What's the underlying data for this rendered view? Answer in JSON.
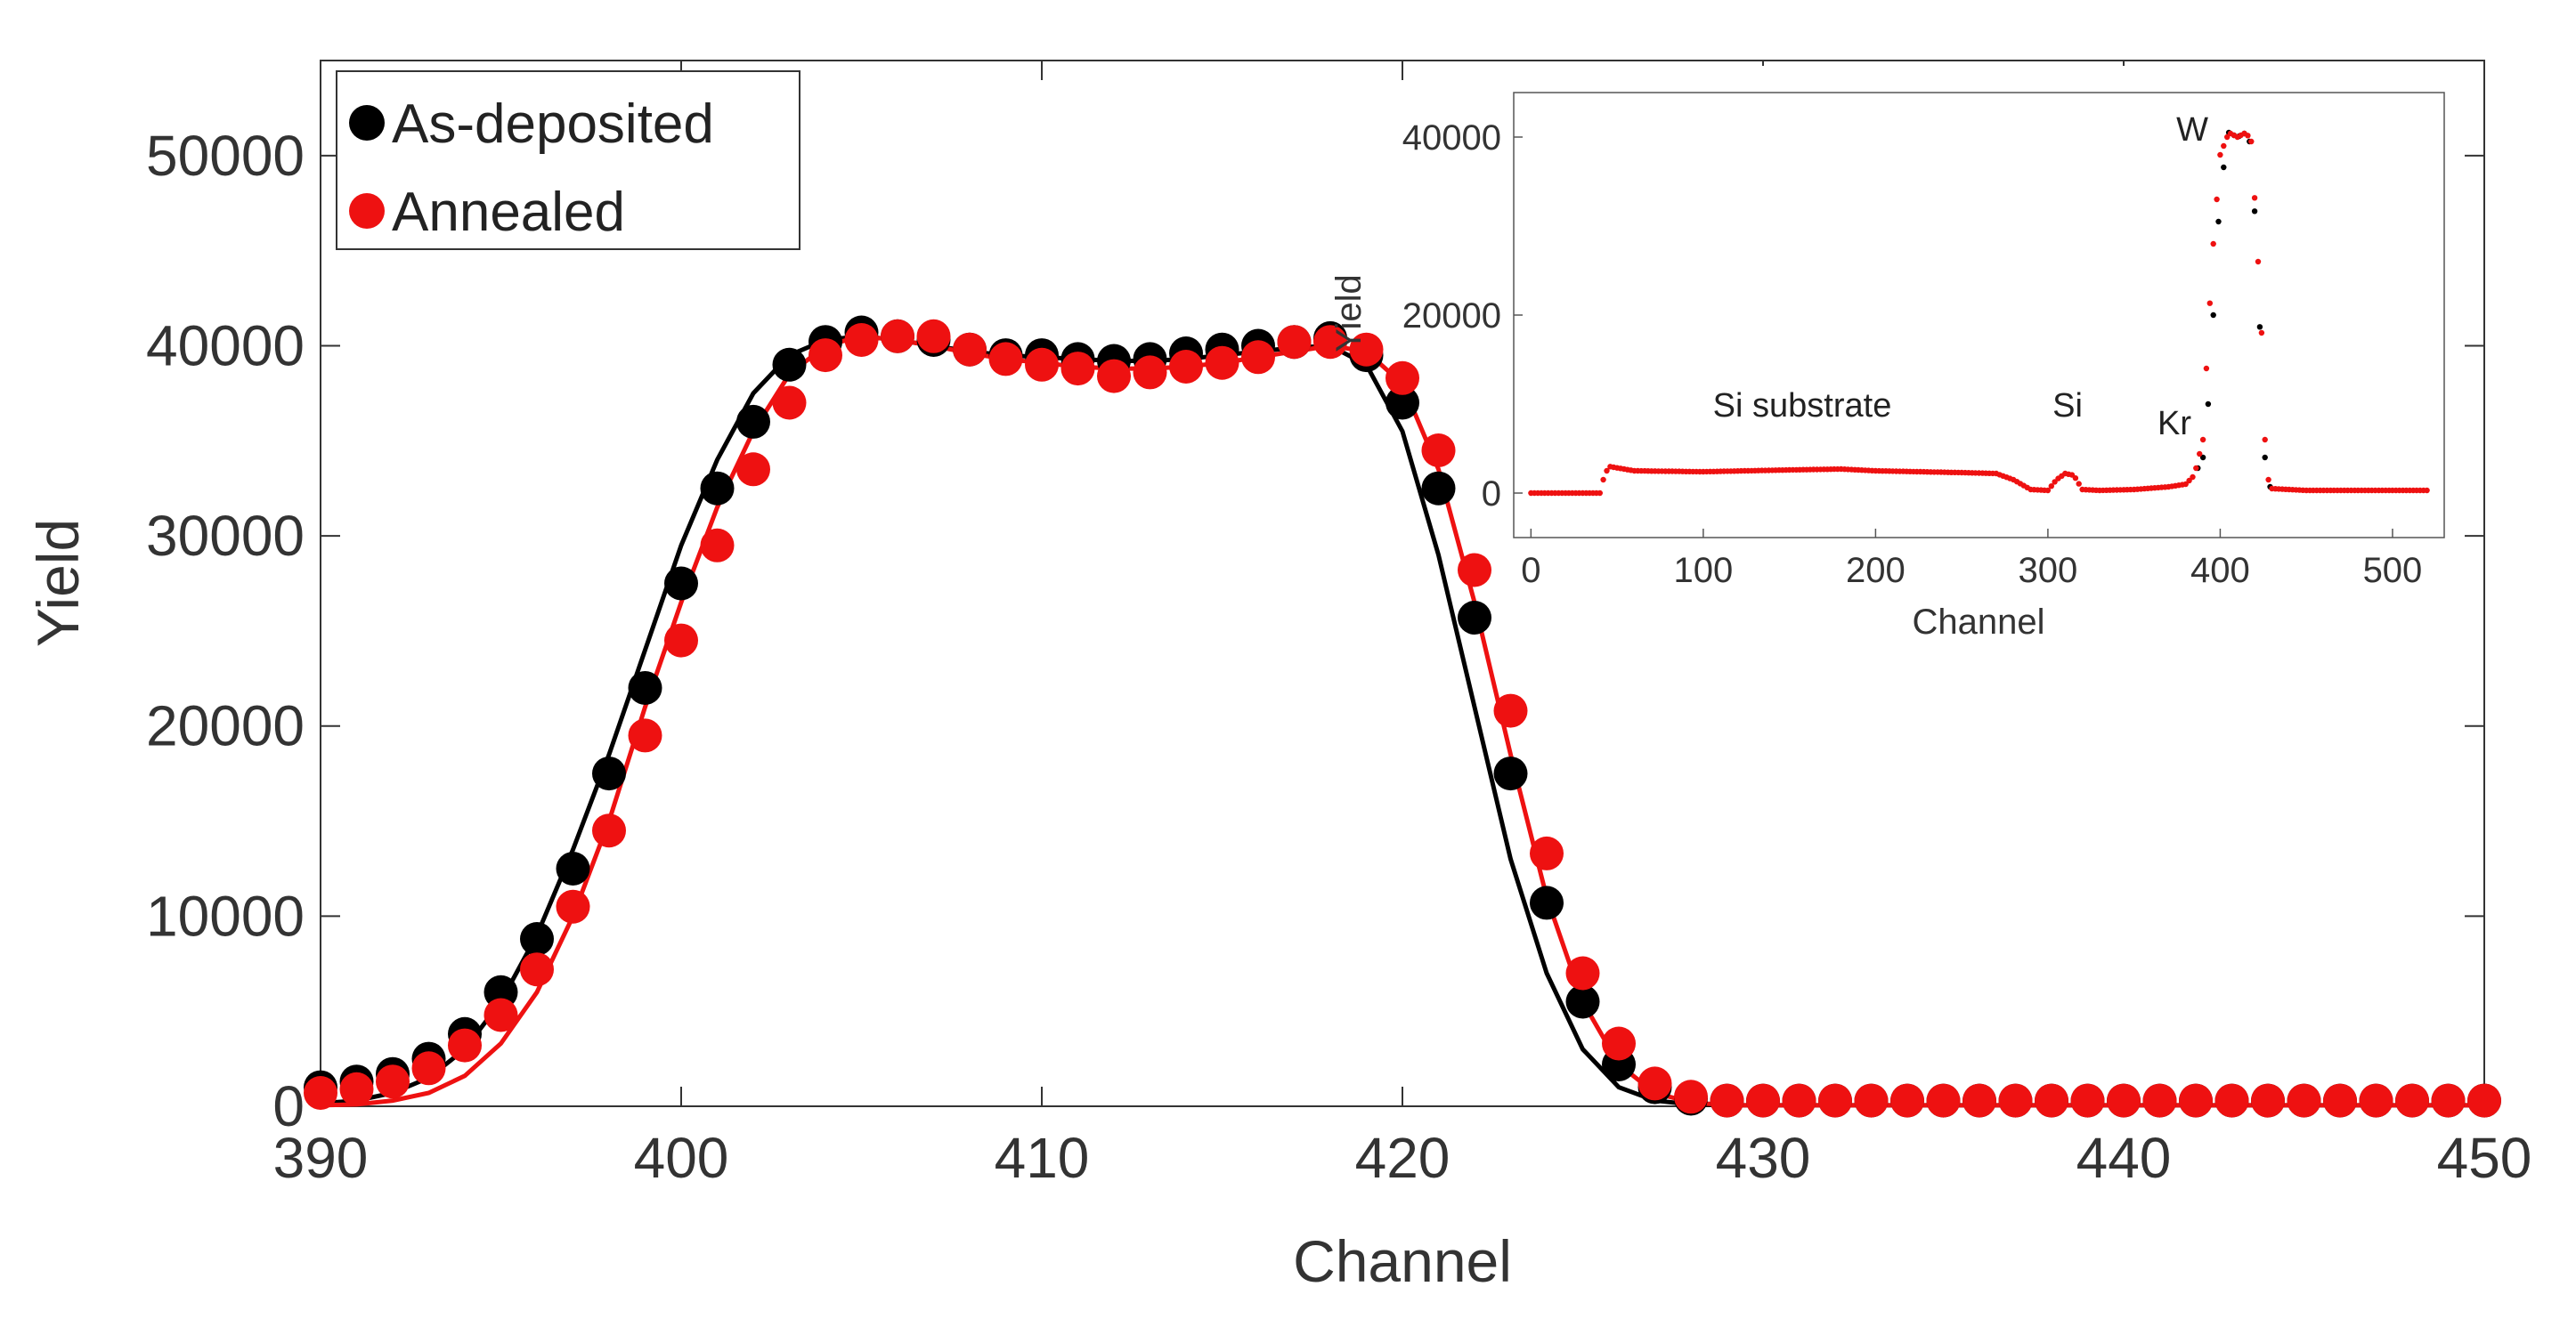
{
  "colors": {
    "as_deposited": "#000000",
    "annealed": "#ee1111",
    "axis": "#333333"
  },
  "chart_data": [
    {
      "id": "main",
      "type": "scatter",
      "title": "",
      "xlabel": "Channel",
      "ylabel": "Yield",
      "xlim": [
        390,
        450
      ],
      "ylim": [
        0,
        55000
      ],
      "xticks": [
        "390",
        "400",
        "410",
        "420",
        "430",
        "440",
        "450"
      ],
      "yticks": [
        "0",
        "10000",
        "20000",
        "30000",
        "40000",
        "50000"
      ],
      "legend_position": "top-left",
      "series": [
        {
          "name": "As-deposited",
          "color": "#000000",
          "x": [
            390,
            391,
            392,
            393,
            394,
            395,
            396,
            397,
            398,
            399,
            400,
            401,
            402,
            403,
            404,
            405,
            406,
            407,
            408,
            409,
            410,
            411,
            412,
            413,
            414,
            415,
            416,
            417,
            418,
            419,
            420,
            421,
            422,
            423,
            424,
            425,
            426,
            427,
            428,
            429,
            430,
            431,
            432,
            433,
            434,
            435,
            436,
            437,
            438,
            439,
            440,
            441,
            442,
            443,
            444,
            445,
            446,
            447,
            448,
            449,
            450
          ],
          "y": [
            1000,
            1300,
            1700,
            2500,
            3800,
            6000,
            8800,
            12500,
            17500,
            22000,
            27500,
            32500,
            36000,
            39000,
            40200,
            40700,
            40500,
            40300,
            39800,
            39500,
            39500,
            39300,
            39200,
            39300,
            39600,
            39800,
            40000,
            40200,
            40400,
            39500,
            37000,
            32500,
            25700,
            17500,
            10700,
            5500,
            2200,
            1000,
            400,
            300,
            300,
            300,
            300,
            300,
            300,
            300,
            300,
            300,
            300,
            300,
            300,
            300,
            300,
            300,
            300,
            300,
            300,
            300,
            300,
            300,
            300
          ],
          "fit": [
            390,
            391,
            392,
            393,
            394,
            395,
            396,
            397,
            398,
            399,
            400,
            401,
            402,
            403,
            404,
            405,
            406,
            407,
            408,
            409,
            410,
            411,
            412,
            413,
            414,
            415,
            416,
            417,
            418,
            419,
            420,
            421,
            422,
            423,
            424,
            425,
            426,
            427,
            428,
            429,
            430,
            431,
            432,
            433,
            434,
            435,
            436,
            437,
            438,
            439,
            440,
            441,
            442,
            443,
            444,
            445,
            446,
            447,
            448,
            449,
            450
          ],
          "fit_y": [
            150,
            300,
            700,
            1500,
            3000,
            5500,
            9000,
            13500,
            18500,
            24000,
            29500,
            34000,
            37500,
            39500,
            40300,
            40500,
            40300,
            40000,
            39700,
            39500,
            39400,
            39300,
            39200,
            39200,
            39300,
            39500,
            39700,
            39900,
            40000,
            39000,
            35500,
            29000,
            21000,
            13000,
            7000,
            3000,
            1000,
            300,
            100,
            50,
            50,
            50,
            50,
            50,
            50,
            50,
            50,
            50,
            50,
            50,
            50,
            50,
            50,
            50,
            50,
            50,
            50,
            50,
            50,
            50,
            50
          ]
        },
        {
          "name": "Annealed",
          "color": "#ee1111",
          "x": [
            390,
            391,
            392,
            393,
            394,
            395,
            396,
            397,
            398,
            399,
            400,
            401,
            402,
            403,
            404,
            405,
            406,
            407,
            408,
            409,
            410,
            411,
            412,
            413,
            414,
            415,
            416,
            417,
            418,
            419,
            420,
            421,
            422,
            423,
            424,
            425,
            426,
            427,
            428,
            429,
            430,
            431,
            432,
            433,
            434,
            435,
            436,
            437,
            438,
            439,
            440,
            441,
            442,
            443,
            444,
            445,
            446,
            447,
            448,
            449,
            450
          ],
          "y": [
            700,
            900,
            1300,
            2000,
            3200,
            4800,
            7200,
            10500,
            14500,
            19500,
            24500,
            29500,
            33500,
            37000,
            39500,
            40300,
            40500,
            40500,
            39800,
            39300,
            39000,
            38800,
            38400,
            38600,
            38900,
            39100,
            39400,
            40200,
            40200,
            39800,
            38300,
            34500,
            28200,
            20800,
            13300,
            7000,
            3300,
            1200,
            500,
            300,
            300,
            300,
            300,
            300,
            300,
            300,
            300,
            300,
            300,
            300,
            300,
            300,
            300,
            300,
            300,
            300,
            300,
            300,
            300,
            300,
            300
          ],
          "fit": [
            390,
            391,
            392,
            393,
            394,
            395,
            396,
            397,
            398,
            399,
            400,
            401,
            402,
            403,
            404,
            405,
            406,
            407,
            408,
            409,
            410,
            411,
            412,
            413,
            414,
            415,
            416,
            417,
            418,
            419,
            420,
            421,
            422,
            423,
            424,
            425,
            426,
            427,
            428,
            429,
            430,
            431,
            432,
            433,
            434,
            435,
            436,
            437,
            438,
            439,
            440,
            441,
            442,
            443,
            444,
            445,
            446,
            447,
            448,
            449,
            450
          ],
          "fit_y": [
            50,
            100,
            300,
            700,
            1600,
            3300,
            6000,
            10000,
            15000,
            21000,
            26500,
            31500,
            35500,
            38500,
            40000,
            40500,
            40300,
            40000,
            39600,
            39300,
            39100,
            38900,
            38800,
            38800,
            38900,
            39100,
            39400,
            39700,
            40000,
            39700,
            38000,
            33500,
            26500,
            18500,
            11000,
            5500,
            2200,
            700,
            200,
            50,
            50,
            50,
            50,
            50,
            50,
            50,
            50,
            50,
            50,
            50,
            50,
            50,
            50,
            50,
            50,
            50,
            50,
            50,
            50,
            50,
            50
          ]
        }
      ]
    },
    {
      "id": "inset",
      "type": "scatter",
      "title": "",
      "xlabel": "Channel",
      "ylabel": "Yield",
      "xlim": [
        -10,
        530
      ],
      "ylim": [
        -5000,
        45000
      ],
      "xticks": [
        "0",
        "100",
        "200",
        "300",
        "400",
        "500"
      ],
      "yticks": [
        "0",
        "20000",
        "40000"
      ],
      "annotations": [
        "Si substrate",
        "Si",
        "Kr",
        "W"
      ],
      "profile": {
        "x": [
          0,
          40,
          42,
          45,
          60,
          100,
          150,
          180,
          200,
          250,
          270,
          280,
          290,
          300,
          305,
          310,
          315,
          320,
          330,
          350,
          370,
          380,
          385,
          390,
          393,
          396,
          400,
          405,
          410,
          415,
          418,
          421,
          424,
          426,
          428,
          430,
          450,
          500,
          520
        ],
        "annealed": [
          0,
          0,
          1500,
          3000,
          2500,
          2400,
          2600,
          2700,
          2500,
          2300,
          2200,
          1500,
          400,
          300,
          1500,
          2200,
          2000,
          400,
          300,
          400,
          700,
          1000,
          2000,
          6000,
          18000,
          28000,
          38000,
          40500,
          40000,
          40500,
          39500,
          30000,
          18000,
          6000,
          1500,
          500,
          300,
          300,
          300
        ],
        "as_deposited": [
          0,
          0,
          1500,
          3000,
          2500,
          2400,
          2600,
          2700,
          2500,
          2300,
          2200,
          1500,
          400,
          300,
          1500,
          2200,
          2000,
          400,
          300,
          400,
          700,
          1000,
          2000,
          4000,
          10000,
          20000,
          34000,
          40500,
          40000,
          40500,
          39000,
          28000,
          14000,
          4000,
          1000,
          400,
          300,
          300,
          300
        ]
      }
    }
  ]
}
